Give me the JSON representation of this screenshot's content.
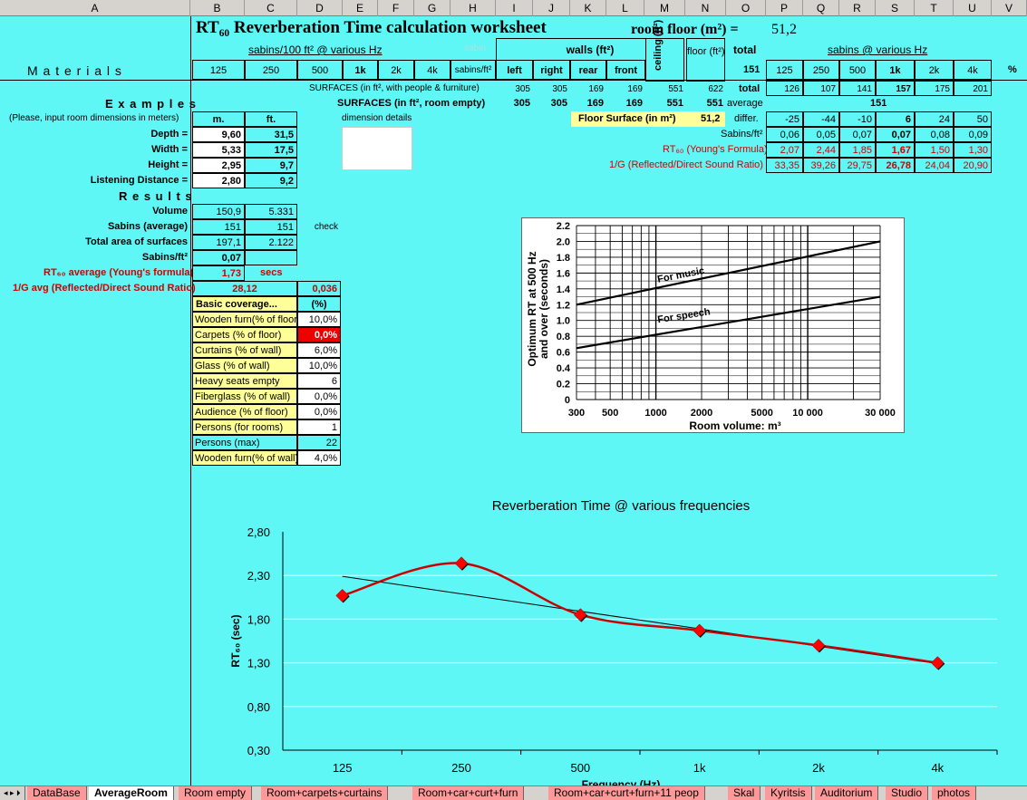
{
  "columns": [
    "A",
    "B",
    "C",
    "D",
    "E",
    "F",
    "G",
    "H",
    "I",
    "J",
    "K",
    "L",
    "M",
    "N",
    "O",
    "P",
    "Q",
    "R",
    "S",
    "T",
    "U",
    "V"
  ],
  "title": {
    "main": "RT₆₀ Reverberation Time calculation worksheet",
    "room_floor_label": "room floor (m²) =",
    "room_floor_value": "51,2"
  },
  "header": {
    "sabins_label": "sabins/100 ft² @ various Hz",
    "sabin_small": "sabin",
    "walls_label": "walls (ft²)",
    "ceiling_label": "ceiling (ft²)",
    "floor_label": "floor (ft²)",
    "total_label": "total",
    "sabins_hz_label": "sabins @ various Hz",
    "materials": "M a t e r i a l s",
    "freqs": [
      "125",
      "250",
      "500",
      "1k",
      "2k",
      "4k"
    ],
    "sabins_ft2": "sabins/ft²",
    "wall_names": [
      "left",
      "right",
      "rear",
      "front"
    ],
    "total_value": "151",
    "freqs_right": [
      "125",
      "250",
      "500",
      "1k",
      "2k",
      "4k"
    ],
    "pct": "%"
  },
  "surfaces": {
    "row1_label": "SURFACES (in ft², with people & furniture)",
    "row1": [
      "305",
      "305",
      "169",
      "169",
      "551",
      "622"
    ],
    "row1_total_label": "total",
    "row1_totals": [
      "126",
      "107",
      "141",
      "157",
      "175",
      "201"
    ],
    "row2_label": "SURFACES (in ft², room empty)",
    "row2": [
      "305",
      "305",
      "169",
      "169",
      "551",
      "551"
    ],
    "row2_avg_label": "average",
    "row2_avg": "151"
  },
  "examples": {
    "title": "E x a m p l e s",
    "instr": "(Please, input room dimensions in meters)",
    "m_label": "m.",
    "ft_label": "ft.",
    "dim_details": "dimension details",
    "rows": [
      {
        "label": "Depth =",
        "m": "9,60",
        "ft": "31,5"
      },
      {
        "label": "Width =",
        "m": "5,33",
        "ft": "17,5"
      },
      {
        "label": "Height =",
        "m": "2,95",
        "ft": "9,7"
      },
      {
        "label": "Listening Distance =",
        "m": "2,80",
        "ft": "9,2"
      }
    ]
  },
  "floor_surface": {
    "label": "Floor Surface (in m²)",
    "value": "51,2",
    "differ_label": "differ."
  },
  "differ": [
    "-25",
    "-44",
    "-10",
    "6",
    "24",
    "50"
  ],
  "sabins_ft2_row": {
    "label": "Sabins/ft²",
    "values": [
      "0,06",
      "0,05",
      "0,07",
      "0,07",
      "0,08",
      "0,09"
    ]
  },
  "rt60_row": {
    "label": "RT₆₀ (Young's Formula)",
    "values": [
      "2,07",
      "2,44",
      "1,85",
      "1,67",
      "1,50",
      "1,30"
    ]
  },
  "ig_row": {
    "label": "1/G (Reflected/Direct Sound Ratio)",
    "values": [
      "33,35",
      "39,26",
      "29,75",
      "26,78",
      "24,04",
      "20,90"
    ]
  },
  "results": {
    "title": "R e s u l t s",
    "rows": [
      {
        "label": "Volume",
        "b": "150,9",
        "c": "5.331",
        "d": ""
      },
      {
        "label": "Sabins (average)",
        "b": "151",
        "c": "151",
        "d": "check"
      },
      {
        "label": "Total area of surfaces",
        "b": "197,1",
        "c": "2.122",
        "d": ""
      },
      {
        "label": "Sabins/ft²",
        "b": "0,07",
        "c": "",
        "d": ""
      }
    ],
    "rt_label": "RT₆₀ average (Young's formula)",
    "rt_value": "1,73",
    "rt_unit": "secs",
    "ig_label": "1/G avg (Reflected/Direct Sound Ratio)",
    "ig_value": "28,12",
    "ig_value2": "0,036"
  },
  "coverage": {
    "header": "Basic coverage...",
    "pct_header": "(%)",
    "rows": [
      {
        "label": "Wooden furn(% of floor)",
        "value": "10,0%"
      },
      {
        "label": "Carpets (% of floor)",
        "value": "0,0%"
      },
      {
        "label": "Curtains (% of wall)",
        "value": "6,0%"
      },
      {
        "label": "Glass (% of wall)",
        "value": "10,0%"
      },
      {
        "label": "Heavy seats empty",
        "value": "6"
      },
      {
        "label": "Fiberglass (% of wall)",
        "value": "0,0%"
      },
      {
        "label": "Audience (% of floor)",
        "value": "0,0%"
      },
      {
        "label": "Persons (for rooms)",
        "value": "1"
      },
      {
        "label": "Persons (max)",
        "value": "22"
      },
      {
        "label": "Wooden furn(% of wall)",
        "value": "4,0%"
      }
    ]
  },
  "optimum_chart": {
    "ylabel1": "Optimum RT at 500 Hz",
    "ylabel2": "and over (seconds)",
    "yticks": [
      "2.2",
      "2.0",
      "1.8",
      "1.6",
      "1.4",
      "1.2",
      "1.0",
      "0.8",
      "0.6",
      "0.4",
      "0.2",
      "0"
    ],
    "xticks": [
      "300",
      "500",
      "1000",
      "2000",
      "5000",
      "10 000",
      "30 000"
    ],
    "xlabel": "Room volume: m³",
    "music": "For music",
    "speech": "For speech"
  },
  "chart_data": {
    "type": "line",
    "title": "Reverberation Time @ various frequencies",
    "categories": [
      "125",
      "250",
      "500",
      "1k",
      "2k",
      "4k"
    ],
    "series": [
      {
        "values": [
          2.07,
          2.44,
          1.85,
          1.67,
          1.5,
          1.3
        ]
      }
    ],
    "trendline": {
      "from": 2.29,
      "to": 1.29
    },
    "ylabel": "RT₆₀ (sec)",
    "xlabel": "Frequency (Hz)",
    "ylim": [
      0.3,
      2.8
    ],
    "yticks": [
      "2,80",
      "2,30",
      "1,80",
      "1,30",
      "0,80",
      "0,30"
    ],
    "line_color": "#cc0000",
    "marker_color": "#ff0000"
  },
  "tabs": [
    "DataBase",
    "AverageRoom",
    "Room empty",
    "Room+carpets+curtains",
    "Room+car+curt+furn",
    "Room+car+curt+furn+11 peop",
    "Skal",
    "Kyritsis",
    "Auditorium",
    "Studio",
    "photos"
  ],
  "active_tab": "AverageRoom"
}
